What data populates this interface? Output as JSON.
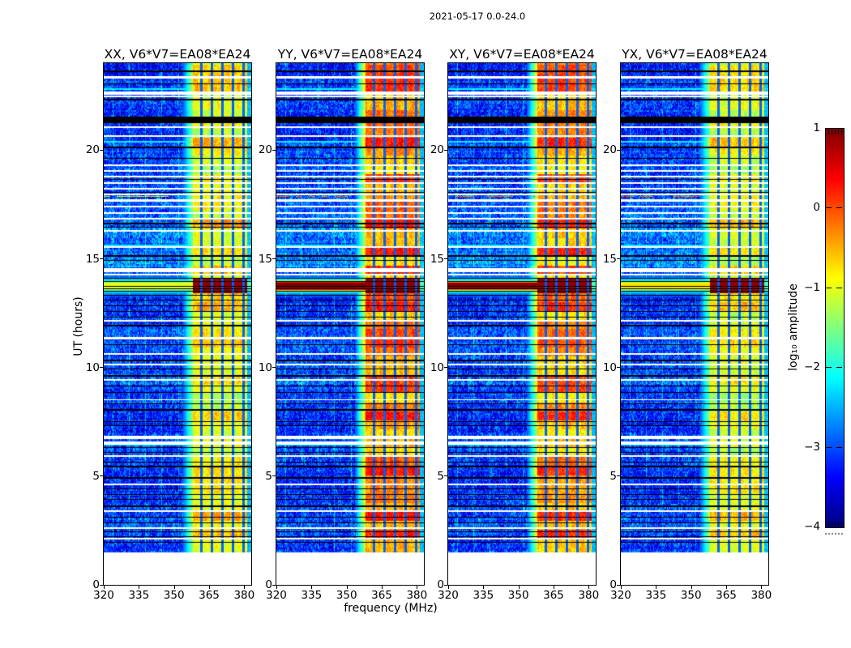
{
  "figure": {
    "suptitle": "2021-05-17 0.0-24.0",
    "background": "#ffffff",
    "text_color": "#000000"
  },
  "chart_data": {
    "type": "heatmap",
    "title": "2021-05-17 0.0-24.0",
    "xlabel": "frequency (MHz)",
    "ylabel": "UT (hours)",
    "x_range": [
      320,
      383
    ],
    "x_ticks": [
      320,
      335,
      350,
      365,
      380
    ],
    "y_range": [
      0,
      24
    ],
    "y_ticks": [
      0,
      5,
      10,
      15,
      20
    ],
    "colormap": "jet",
    "grid": false,
    "colorbar": {
      "label": "log₁₀ amplitude",
      "range": [
        -4,
        1
      ],
      "ticks": [
        1,
        0,
        -1,
        -2,
        -3,
        -4
      ],
      "tick_labels": [
        "1",
        "0",
        "−1",
        "−2",
        "−3",
        "−4"
      ],
      "inner_dash_ticks": [
        0,
        -1,
        -2,
        -3
      ]
    },
    "panels": [
      {
        "title": "XX, V6*V7=EA08*EA24",
        "band_base": -1.05,
        "burst_cap": -1.0,
        "burst_width": 0.1,
        "left_red_cap": -0.9
      },
      {
        "title": "YY, V6*V7=EA08*EA24",
        "band_base": -0.6,
        "burst_cap": 1.0,
        "burst_width": 0.17,
        "left_red_cap": -0.25
      },
      {
        "title": "XY, V6*V7=EA08*EA24",
        "band_base": -0.72,
        "burst_cap": 0.95,
        "burst_width": 0.15,
        "left_red_cap": -0.1
      },
      {
        "title": "YX, V6*V7=EA08*EA24",
        "band_base": -1.12,
        "burst_cap": -0.75,
        "burst_width": 0.11,
        "left_red_cap": -0.15
      }
    ],
    "features": {
      "data_start_ut": 1.5,
      "rfi_band_mhz": [
        358.2,
        381.3
      ],
      "rfi_gap_mhz": [
        361.7,
        366.2,
        370.7,
        375.2,
        379.7
      ],
      "faint_vertical_lines_mhz": [
        323.9,
        330.9,
        337.9,
        344.9,
        351.9
      ],
      "burst": {
        "ut_center": 13.75,
        "ut_halfwidth": 0.33,
        "description": "bright broadband burst near UT 13.7; saturated dark-red blocks inside RFI band on all panels, full-band red in YY and XY"
      },
      "thick_black_band_ut": [
        21.25,
        21.55
      ],
      "white_stripes_ut": [
        [
          23.35,
          0.1
        ],
        [
          22.62,
          0.14
        ],
        [
          22.48,
          0.08
        ],
        [
          21.05,
          0.08
        ],
        [
          20.65,
          0.08
        ],
        [
          19.32,
          0.08
        ],
        [
          19.05,
          0.08
        ],
        [
          18.78,
          0.1
        ],
        [
          18.5,
          0.08
        ],
        [
          18.22,
          0.08
        ],
        [
          17.95,
          0.08
        ],
        [
          17.68,
          0.1
        ],
        [
          17.4,
          0.08
        ],
        [
          17.12,
          0.08
        ],
        [
          16.85,
          0.08
        ],
        [
          16.3,
          0.08
        ],
        [
          15.55,
          0.06
        ],
        [
          14.48,
          0.16
        ],
        [
          14.28,
          0.08
        ],
        [
          12.15,
          0.1
        ],
        [
          11.35,
          0.08
        ],
        [
          10.62,
          0.08
        ],
        [
          10.15,
          0.08
        ],
        [
          9.42,
          0.08
        ],
        [
          8.52,
          0.06
        ],
        [
          6.78,
          0.14
        ],
        [
          6.52,
          0.14
        ],
        [
          5.92,
          0.06
        ],
        [
          4.62,
          0.08
        ],
        [
          3.38,
          0.08
        ],
        [
          2.62,
          0.06
        ],
        [
          2.12,
          0.06
        ]
      ],
      "black_stripes_ut": [
        [
          23.62,
          0.06
        ],
        [
          23.05,
          0.06
        ],
        [
          22.32,
          0.06
        ],
        [
          20.12,
          0.06
        ],
        [
          19.62,
          0.06
        ],
        [
          18.65,
          0.05
        ],
        [
          18.05,
          0.05
        ],
        [
          16.62,
          0.06
        ],
        [
          16.45,
          0.05
        ],
        [
          15.12,
          0.06
        ],
        [
          14.92,
          0.05
        ],
        [
          14.1,
          0.05
        ],
        [
          13.95,
          0.04
        ],
        [
          13.75,
          0.04
        ],
        [
          13.62,
          0.04
        ],
        [
          13.52,
          0.05
        ],
        [
          13.32,
          0.05
        ],
        [
          13.1,
          0.06
        ],
        [
          12.85,
          0.05
        ],
        [
          12.58,
          0.06
        ],
        [
          12.32,
          0.05
        ],
        [
          11.92,
          0.06
        ],
        [
          11.05,
          0.06
        ],
        [
          10.32,
          0.06
        ],
        [
          9.92,
          0.05
        ],
        [
          9.62,
          0.06
        ],
        [
          9.15,
          0.05
        ],
        [
          8.85,
          0.06
        ],
        [
          8.32,
          0.05
        ],
        [
          8.05,
          0.06
        ],
        [
          7.52,
          0.05
        ],
        [
          7.32,
          0.06
        ],
        [
          6.32,
          0.05
        ],
        [
          6.1,
          0.06
        ],
        [
          5.65,
          0.05
        ],
        [
          5.45,
          0.06
        ],
        [
          4.92,
          0.06
        ],
        [
          4.42,
          0.05
        ],
        [
          4.15,
          0.06
        ],
        [
          3.92,
          0.05
        ],
        [
          3.62,
          0.06
        ],
        [
          3.12,
          0.05
        ],
        [
          2.85,
          0.06
        ],
        [
          2.45,
          0.05
        ],
        [
          2.22,
          0.06
        ],
        [
          1.95,
          0.05
        ]
      ],
      "cyan_rows_ut": [
        [
          6.44,
          0.09
        ],
        [
          15.62,
          0.07
        ],
        [
          20.38,
          0.08
        ],
        [
          22.82,
          0.07
        ]
      ],
      "left_red_rows_ut": [
        [
          17.72,
          0.06
        ],
        [
          17.86,
          0.05
        ],
        [
          17.98,
          0.04
        ]
      ]
    }
  }
}
